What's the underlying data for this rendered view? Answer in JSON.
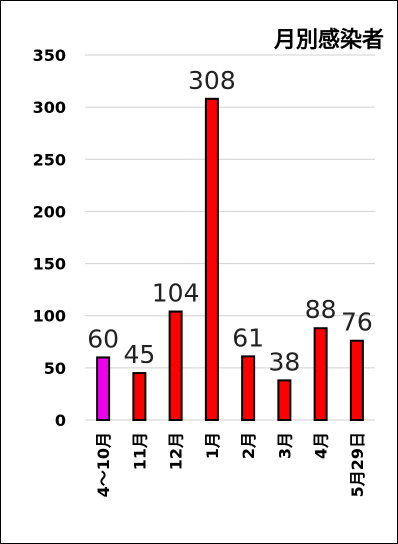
{
  "chart_data": {
    "type": "bar",
    "title": "月別感染者",
    "categories": [
      "4～10月",
      "11月",
      "12月",
      "1月",
      "2月",
      "3月",
      "4月",
      "5月29日"
    ],
    "values": [
      60,
      45,
      104,
      308,
      61,
      38,
      88,
      76
    ],
    "data_labels": [
      "60",
      "45",
      "104",
      "308",
      "61",
      "38",
      "88",
      "76"
    ],
    "ylim": [
      0,
      350
    ],
    "yticks": [
      0,
      50,
      100,
      150,
      200,
      250,
      300,
      350
    ],
    "grid": true,
    "colors": [
      "#ee00ee",
      "#ff0000",
      "#ff0000",
      "#ff0000",
      "#ff0000",
      "#ff0000",
      "#ff0000",
      "#ff0000"
    ],
    "edge_color": "#000000",
    "gridline_color": "#d0d0d0",
    "legend": "none"
  }
}
